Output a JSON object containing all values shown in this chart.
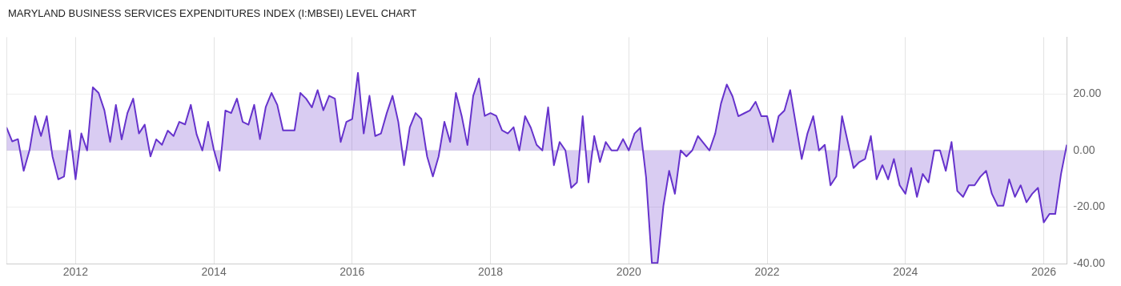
{
  "chart_data": {
    "type": "area",
    "title": "MARYLAND BUSINESS SERVICES EXPENDITURES INDEX (I:MBSEI) LEVEL CHART",
    "x": [
      "2011-01",
      "2011-02",
      "2011-03",
      "2011-04",
      "2011-05",
      "2011-06",
      "2011-07",
      "2011-08",
      "2011-09",
      "2011-10",
      "2011-11",
      "2011-12",
      "2012-01",
      "2012-02",
      "2012-03",
      "2012-04",
      "2012-05",
      "2012-06",
      "2012-07",
      "2012-08",
      "2012-09",
      "2012-10",
      "2012-11",
      "2012-12",
      "2013-01",
      "2013-02",
      "2013-03",
      "2013-04",
      "2013-05",
      "2013-06",
      "2013-07",
      "2013-08",
      "2013-09",
      "2013-10",
      "2013-11",
      "2013-12",
      "2014-01",
      "2014-02",
      "2014-03",
      "2014-04",
      "2014-05",
      "2014-06",
      "2014-07",
      "2014-08",
      "2014-09",
      "2014-10",
      "2014-11",
      "2014-12",
      "2015-01",
      "2015-02",
      "2015-03",
      "2015-04",
      "2015-05",
      "2015-06",
      "2015-07",
      "2015-08",
      "2015-09",
      "2015-10",
      "2015-11",
      "2015-12",
      "2016-01",
      "2016-02",
      "2016-03",
      "2016-04",
      "2016-05",
      "2016-06",
      "2016-07",
      "2016-08",
      "2016-09",
      "2016-10",
      "2016-11",
      "2016-12",
      "2017-01",
      "2017-02",
      "2017-03",
      "2017-04",
      "2017-05",
      "2017-06",
      "2017-07",
      "2017-08",
      "2017-09",
      "2017-10",
      "2017-11",
      "2017-12",
      "2018-01",
      "2018-02",
      "2018-03",
      "2018-04",
      "2018-05",
      "2018-06",
      "2018-07",
      "2018-08",
      "2018-09",
      "2018-10",
      "2018-11",
      "2018-12",
      "2019-01",
      "2019-02",
      "2019-03",
      "2019-04",
      "2019-05",
      "2019-06",
      "2019-07",
      "2019-08",
      "2019-09",
      "2019-10",
      "2019-11",
      "2019-12",
      "2020-01",
      "2020-02",
      "2020-03",
      "2020-04",
      "2020-05",
      "2020-06",
      "2020-07",
      "2020-08",
      "2020-09",
      "2020-10",
      "2020-11",
      "2020-12",
      "2021-01",
      "2021-02",
      "2021-03",
      "2021-04",
      "2021-05",
      "2021-06",
      "2021-07",
      "2021-08",
      "2021-09",
      "2021-10",
      "2021-11",
      "2021-12",
      "2022-01",
      "2022-02",
      "2022-03",
      "2022-04",
      "2022-05",
      "2022-06",
      "2022-07",
      "2022-08",
      "2022-09",
      "2022-10",
      "2022-11",
      "2022-12",
      "2023-01",
      "2023-02",
      "2023-03",
      "2023-04",
      "2023-05",
      "2023-06",
      "2023-07",
      "2023-08",
      "2023-09",
      "2023-10",
      "2023-11",
      "2023-12",
      "2024-01",
      "2024-02",
      "2024-03",
      "2024-04",
      "2024-05",
      "2024-06",
      "2024-07",
      "2024-08",
      "2024-09",
      "2024-10",
      "2024-11",
      "2024-12",
      "2025-01",
      "2025-02",
      "2025-03",
      "2025-04",
      "2025-05",
      "2025-06",
      "2025-07",
      "2025-08",
      "2025-09",
      "2025-10",
      "2025-11",
      "2025-12",
      "2026-01",
      "2026-02",
      "2026-03",
      "2026-04",
      "2026-05"
    ],
    "series": [
      {
        "color": "#6633cc",
        "values": [
          8.2,
          3.2,
          4.0,
          -7.2,
          0,
          12.1,
          5.1,
          12.1,
          -2.1,
          -10.2,
          -9.2,
          7.1,
          -10.2,
          6.0,
          0,
          22.3,
          20.3,
          14.2,
          3.0,
          16.1,
          3.9,
          13.2,
          18.3,
          6.0,
          9.1,
          -2.1,
          3.9,
          2.0,
          7.0,
          5.1,
          10.1,
          9.2,
          16.1,
          5.7,
          0,
          10.1,
          0.2,
          -7.2,
          14.1,
          13.2,
          18.3,
          10.1,
          9.1,
          16.1,
          4.0,
          15.3,
          20.3,
          16.1,
          7.1,
          7.1,
          7.1,
          20.3,
          18.3,
          15.2,
          21.3,
          14.2,
          19.3,
          18.3,
          3.0,
          10.1,
          11.1,
          27.4,
          6.0,
          19.3,
          5.1,
          6.0,
          13.2,
          19.3,
          10.1,
          -5.2,
          8.2,
          13.2,
          11.1,
          -2.1,
          -9.2,
          -2.1,
          10.1,
          3.0,
          20.3,
          12.2,
          1.9,
          19.3,
          25.4,
          12.2,
          13.2,
          12.2,
          7.1,
          6.0,
          8.2,
          0,
          12.1,
          8.0,
          2.0,
          0,
          15.2,
          -5.2,
          3.0,
          0,
          -13.2,
          -11.3,
          12.1,
          -11.3,
          5.1,
          -4.1,
          3.0,
          0,
          0,
          4.0,
          0,
          6.0,
          8.0,
          -9.5,
          -39.7,
          -39.7,
          -19.6,
          -7.2,
          -15.3,
          0,
          -2.1,
          0,
          5.1,
          2.5,
          0,
          6.0,
          16.6,
          23.3,
          19.1,
          12.1,
          13.1,
          14.1,
          17.2,
          12.1,
          12.1,
          3.0,
          12.1,
          14.1,
          21.3,
          9.1,
          -3.0,
          6.0,
          12.1,
          0,
          2.0,
          -12.3,
          -9.2,
          12.1,
          3.0,
          -6.2,
          -4.1,
          -3.0,
          5.1,
          -10.2,
          -5.2,
          -10.2,
          -3.0,
          -12.3,
          -15.3,
          -6.2,
          -16.4,
          -8.3,
          -11.3,
          0,
          0,
          -7.2,
          3.0,
          -14.3,
          -16.4,
          -12.3,
          -12.3,
          -9.3,
          -7.2,
          -15.3,
          -19.5,
          -19.5,
          -10.2,
          -16.4,
          -12.3,
          -18.3,
          -15.3,
          -13.2,
          -25.4,
          -22.4,
          -22.4,
          -8.3,
          2.0
        ]
      }
    ],
    "xlim": [
      "2011-01",
      "2026-05"
    ],
    "xticks": [
      "2012",
      "2014",
      "2016",
      "2018",
      "2020",
      "2022",
      "2024",
      "2026"
    ],
    "ylim": [
      -40,
      40
    ],
    "yticks": [
      {
        "value": -40,
        "label": "-40.00"
      },
      {
        "value": -20,
        "label": "-20.00"
      },
      {
        "value": 0,
        "label": "0.00"
      },
      {
        "value": 20,
        "label": "20.00"
      }
    ],
    "grid": true
  }
}
